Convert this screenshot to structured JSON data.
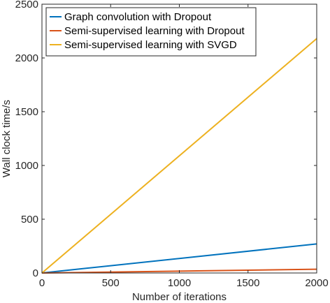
{
  "chart_data": {
    "type": "line",
    "title": "",
    "xlabel": "Number of iterations",
    "ylabel": "Wall clock time/s",
    "xlim": [
      0,
      2000
    ],
    "ylim": [
      0,
      2500
    ],
    "xticks": [
      0,
      500,
      1000,
      1500,
      2000
    ],
    "yticks": [
      0,
      500,
      1000,
      1500,
      2000,
      2500
    ],
    "grid": false,
    "legend_position": "top-left",
    "series": [
      {
        "name": "Graph convolution with Dropout",
        "color": "#0072BD",
        "x": [
          0,
          2000
        ],
        "y": [
          0,
          270
        ]
      },
      {
        "name": "Semi-supervised learning with Dropout",
        "color": "#D95319",
        "x": [
          0,
          2000
        ],
        "y": [
          0,
          35
        ]
      },
      {
        "name": "Semi-supervised learning with SVGD",
        "color": "#EDB120",
        "x": [
          0,
          2000
        ],
        "y": [
          0,
          2180
        ]
      }
    ]
  }
}
